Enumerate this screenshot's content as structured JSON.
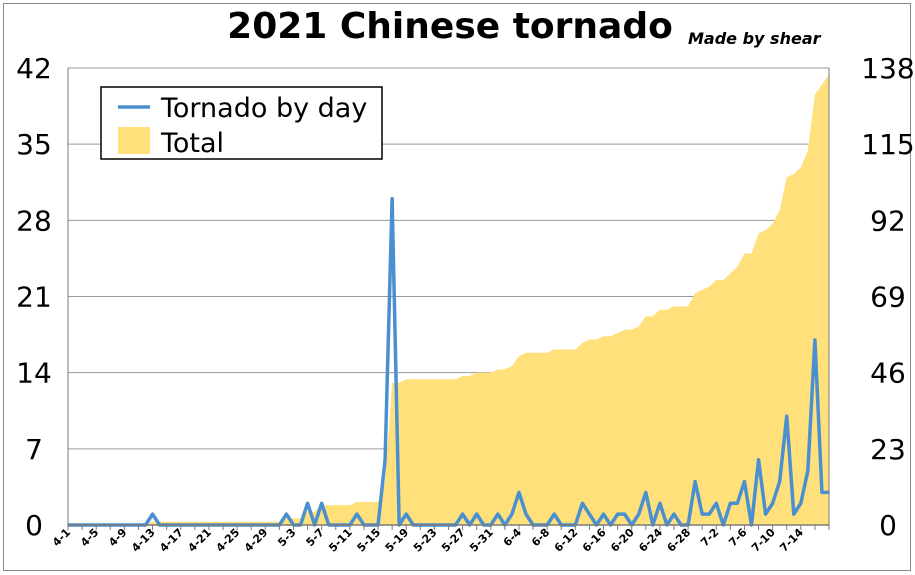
{
  "chart_data": {
    "type": "line+area",
    "title": "2021 Chinese tornado",
    "credit": "Made by shear",
    "left_axis": {
      "ylim": [
        0,
        42
      ],
      "ticks": [
        "0",
        "7",
        "14",
        "21",
        "28",
        "35",
        "42"
      ]
    },
    "right_axis": {
      "ylim": [
        0,
        138
      ],
      "ticks": [
        "0",
        "23",
        "46",
        "69",
        "92",
        "115",
        "138"
      ]
    },
    "grid": true,
    "legend_position": "top-left",
    "x_tick_labels": [
      "4-1",
      "4-5",
      "4-9",
      "4-13",
      "4-17",
      "4-21",
      "4-25",
      "4-29",
      "5-3",
      "5-7",
      "5-11",
      "5-15",
      "5-19",
      "5-23",
      "5-27",
      "5-31",
      "6-4",
      "6-8",
      "6-12",
      "6-16",
      "6-20",
      "6-24",
      "6-28",
      "7-2",
      "7-6",
      "7-10",
      "7-14"
    ],
    "series": [
      {
        "name": "Tornado by day",
        "axis": "left",
        "kind": "line",
        "color": "#4a90d0",
        "values": [
          0,
          0,
          0,
          0,
          0,
          0,
          0,
          0,
          0,
          0,
          0,
          0,
          1,
          0,
          0,
          0,
          0,
          0,
          0,
          0,
          0,
          0,
          0,
          0,
          0,
          0,
          0,
          0,
          0,
          0,
          0,
          1,
          0,
          0,
          2,
          0,
          2,
          0,
          0,
          0,
          0,
          1,
          0,
          0,
          0,
          6,
          30,
          0,
          1,
          0,
          0,
          0,
          0,
          0,
          0,
          0,
          1,
          0,
          1,
          0,
          0,
          1,
          0,
          1,
          3,
          1,
          0,
          0,
          0,
          1,
          0,
          0,
          0,
          2,
          1,
          0,
          1,
          0,
          1,
          1,
          0,
          1,
          3,
          0,
          2,
          0,
          1,
          0,
          0,
          4,
          1,
          1,
          2,
          0,
          2,
          2,
          4,
          0,
          6,
          1,
          2,
          4,
          10,
          1,
          2,
          5,
          17,
          3,
          3
        ]
      },
      {
        "name": "Total",
        "axis": "right",
        "kind": "area",
        "color": "#ffe07a",
        "values": [
          0,
          0,
          0,
          0,
          0,
          0,
          0,
          0,
          0,
          0,
          0,
          0,
          1,
          1,
          1,
          1,
          1,
          1,
          1,
          1,
          1,
          1,
          1,
          1,
          1,
          1,
          1,
          1,
          1,
          1,
          1,
          2,
          2,
          2,
          4,
          4,
          6,
          6,
          6,
          6,
          6,
          7,
          7,
          7,
          7,
          13,
          43,
          43,
          44,
          44,
          44,
          44,
          44,
          44,
          44,
          44,
          45,
          45,
          46,
          46,
          46,
          47,
          47,
          48,
          51,
          52,
          52,
          52,
          52,
          53,
          53,
          53,
          53,
          55,
          56,
          56,
          57,
          57,
          58,
          59,
          59,
          60,
          63,
          63,
          65,
          65,
          66,
          66,
          66,
          70,
          71,
          72,
          74,
          74,
          76,
          78,
          82,
          82,
          88,
          89,
          91,
          95,
          105,
          106,
          108,
          113,
          130,
          133,
          136
        ]
      }
    ]
  }
}
